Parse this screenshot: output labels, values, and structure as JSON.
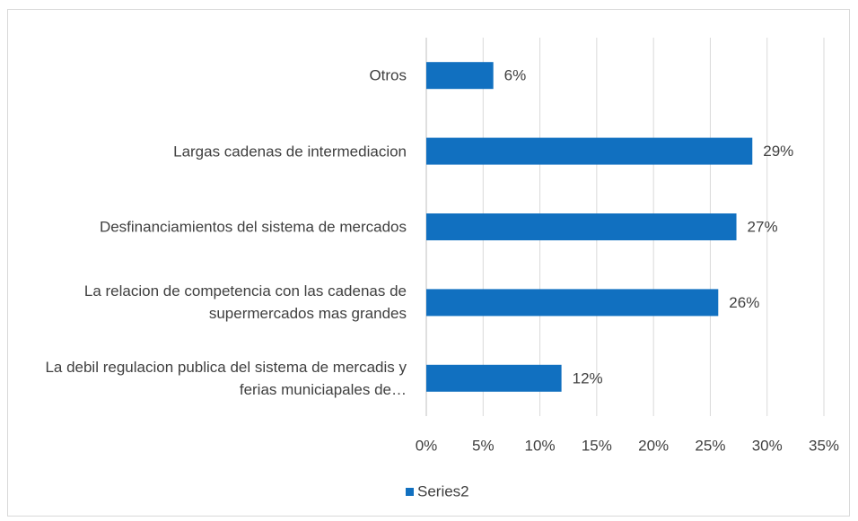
{
  "chart_data": {
    "type": "bar",
    "orientation": "horizontal",
    "categories": [
      "Otros",
      "Largas cadenas de intermediacion",
      "Desfinanciamientos del sistema de mercados",
      "La relacion de competencia con las cadenas de supermercados mas grandes",
      "La debil regulacion publica del sistema de mercadis y ferias municiapales de…"
    ],
    "series": [
      {
        "name": "Series2",
        "color": "#1170c0",
        "values": [
          5.9,
          28.7,
          27.3,
          25.7,
          11.9
        ],
        "value_labels": [
          "6%",
          "29%",
          "27%",
          "26%",
          "12%"
        ]
      }
    ],
    "xlim": [
      0,
      35
    ],
    "xticks": [
      {
        "value": 0,
        "label": "0%"
      },
      {
        "value": 5,
        "label": "5%"
      },
      {
        "value": 10,
        "label": "10%"
      },
      {
        "value": 15,
        "label": "15%"
      },
      {
        "value": 20,
        "label": "20%"
      },
      {
        "value": 25,
        "label": "25%"
      },
      {
        "value": 30,
        "label": "30%"
      },
      {
        "value": 35,
        "label": "35%"
      }
    ],
    "grid": true,
    "legend": "bottom"
  }
}
